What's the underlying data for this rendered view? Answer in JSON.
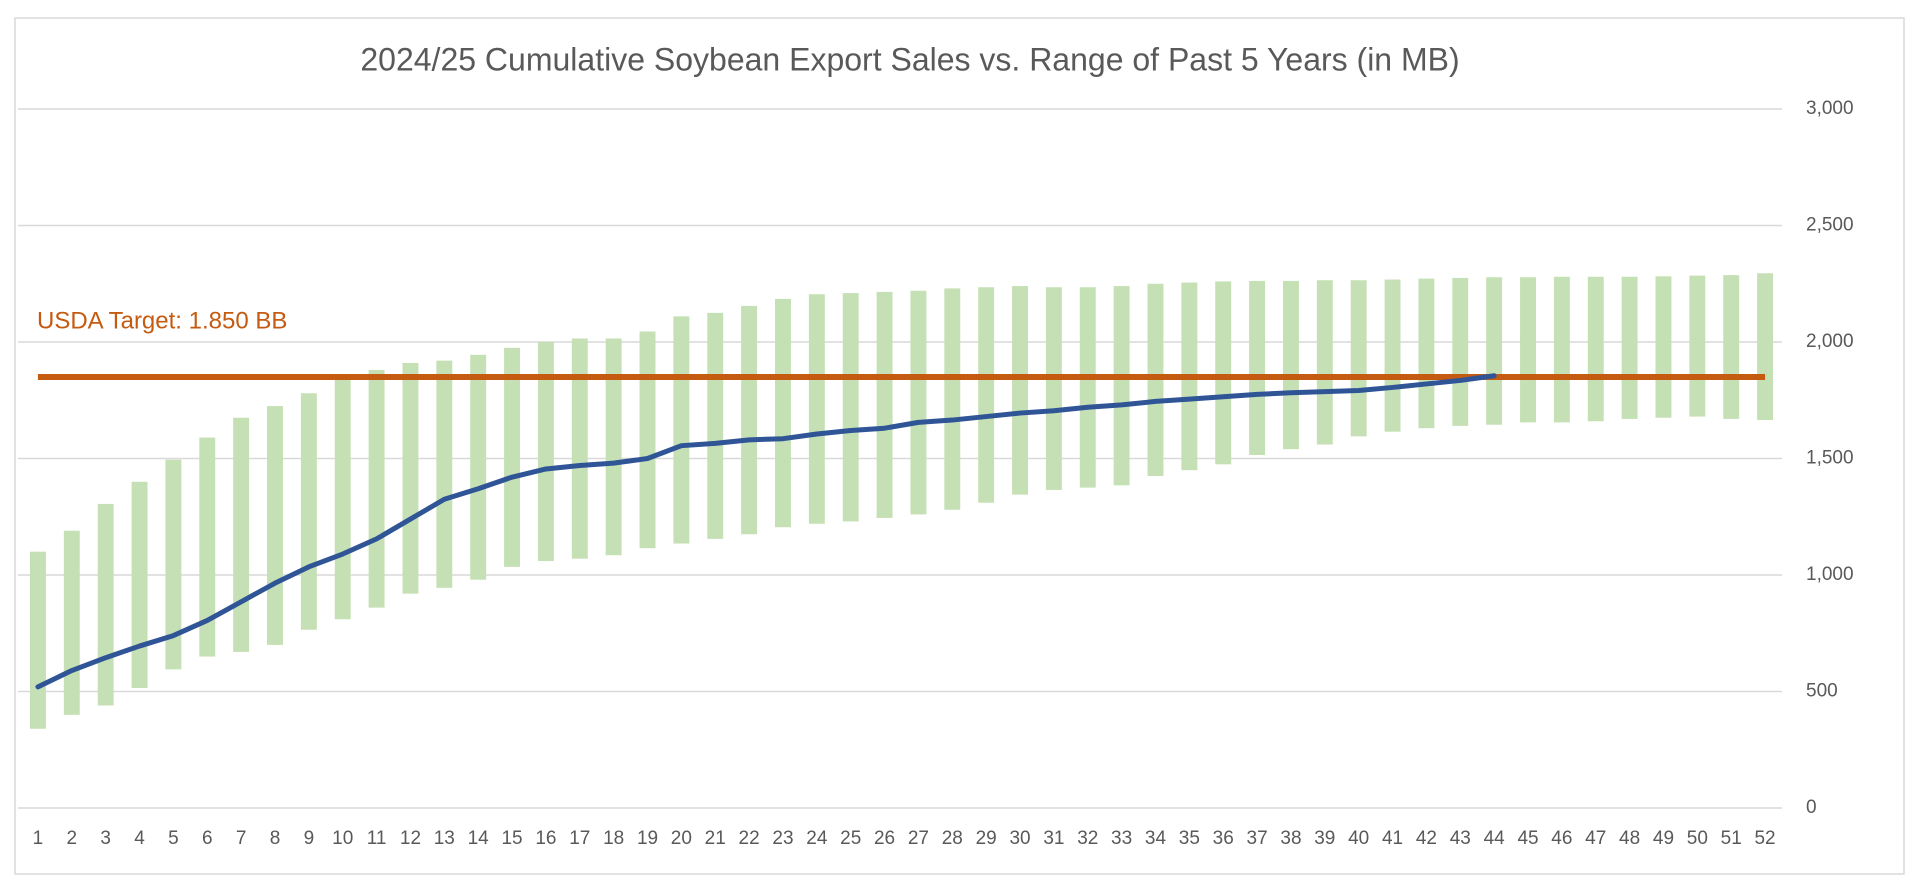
{
  "chart_data": {
    "type": "range-bar-line",
    "title": "2024/25 Cumulative Soybean Export Sales vs. Range of Past 5 Years (in MB)",
    "categories": [
      "1",
      "2",
      "3",
      "4",
      "5",
      "6",
      "7",
      "8",
      "9",
      "10",
      "11",
      "12",
      "13",
      "14",
      "15",
      "16",
      "17",
      "18",
      "19",
      "20",
      "21",
      "22",
      "23",
      "24",
      "25",
      "26",
      "27",
      "28",
      "29",
      "30",
      "31",
      "32",
      "33",
      "34",
      "35",
      "36",
      "37",
      "38",
      "39",
      "40",
      "41",
      "42",
      "43",
      "44",
      "45",
      "46",
      "47",
      "48",
      "49",
      "50",
      "51",
      "52"
    ],
    "range": {
      "color": "#c5e0b4",
      "low": [
        340,
        400,
        440,
        515,
        595,
        650,
        670,
        700,
        765,
        810,
        860,
        920,
        945,
        980,
        1035,
        1060,
        1070,
        1085,
        1115,
        1135,
        1155,
        1175,
        1205,
        1220,
        1230,
        1245,
        1260,
        1280,
        1310,
        1345,
        1365,
        1375,
        1385,
        1425,
        1450,
        1475,
        1515,
        1540,
        1560,
        1595,
        1615,
        1630,
        1640,
        1645,
        1655,
        1655,
        1660,
        1670,
        1675,
        1680,
        1670,
        1665
      ],
      "high": [
        1100,
        1190,
        1305,
        1400,
        1495,
        1590,
        1675,
        1725,
        1780,
        1840,
        1880,
        1910,
        1920,
        1945,
        1975,
        2000,
        2015,
        2015,
        2045,
        2110,
        2125,
        2155,
        2185,
        2205,
        2210,
        2215,
        2220,
        2230,
        2235,
        2240,
        2235,
        2235,
        2240,
        2250,
        2255,
        2260,
        2262,
        2262,
        2265,
        2265,
        2268,
        2272,
        2275,
        2278,
        2278,
        2280,
        2280,
        2280,
        2282,
        2285,
        2287,
        2295
      ]
    },
    "line": {
      "color": "#2f5597",
      "values": [
        520,
        590,
        645,
        695,
        740,
        805,
        885,
        965,
        1035,
        1090,
        1155,
        1240,
        1325,
        1370,
        1420,
        1455,
        1470,
        1480,
        1500,
        1555,
        1565,
        1580,
        1585,
        1605,
        1620,
        1630,
        1655,
        1665,
        1680,
        1695,
        1705,
        1720,
        1730,
        1745,
        1755,
        1765,
        1775,
        1782,
        1787,
        1792,
        1805,
        1820,
        1835,
        1855,
        null,
        null,
        null,
        null,
        null,
        null,
        null,
        null
      ]
    },
    "target": {
      "value": 1850,
      "label": "USDA Target: 1.850 BB",
      "color": "#c55a11"
    },
    "ylim": [
      0,
      3000
    ],
    "yticks": [
      0,
      500,
      {
        "value": 1000,
        "label": "1,000"
      },
      {
        "value": 1500,
        "label": "1,500"
      },
      {
        "value": 2000,
        "label": "2,000"
      },
      {
        "value": 2500,
        "label": "2,500"
      },
      {
        "value": 3000,
        "label": "3,000"
      }
    ],
    "grid": true
  }
}
